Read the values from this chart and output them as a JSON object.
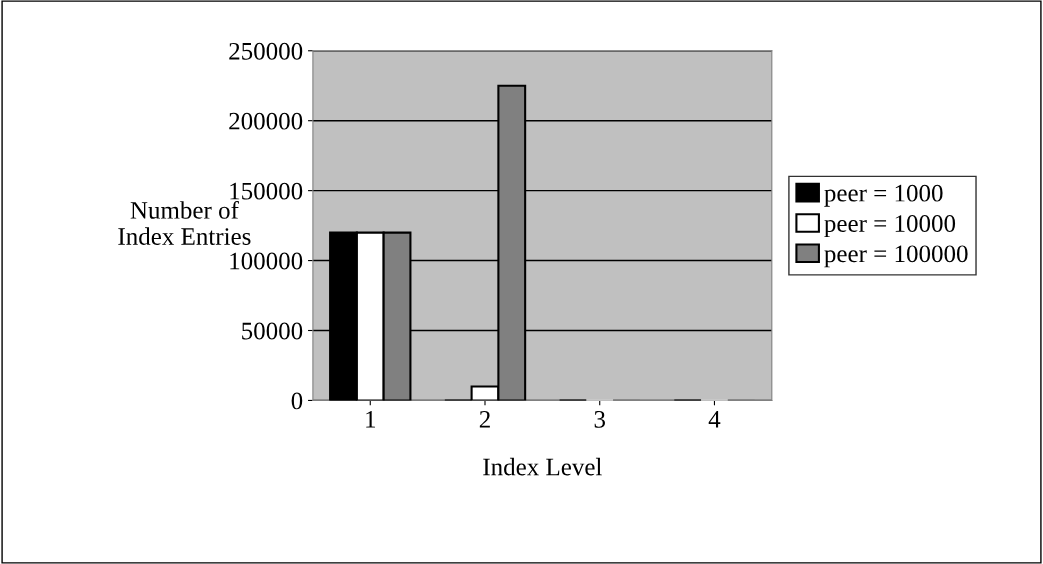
{
  "chart_data": {
    "type": "bar",
    "xlabel": "Index Level",
    "ylabel": "Number of\nIndex Entries",
    "categories": [
      "1",
      "2",
      "3",
      "4"
    ],
    "series": [
      {
        "name": "peer = 1000",
        "color": "#000000",
        "values": [
          120000,
          0,
          0,
          0
        ]
      },
      {
        "name": "peer = 10000",
        "color": "#ffffff",
        "values": [
          120000,
          10000,
          0,
          0
        ]
      },
      {
        "name": "peer = 100000",
        "color": "#808080",
        "values": [
          120000,
          225000,
          0,
          0
        ]
      }
    ],
    "ylim": [
      0,
      250000
    ],
    "yticks": [
      0,
      50000,
      100000,
      150000,
      200000,
      250000
    ],
    "grid": "y",
    "legend": "right"
  }
}
